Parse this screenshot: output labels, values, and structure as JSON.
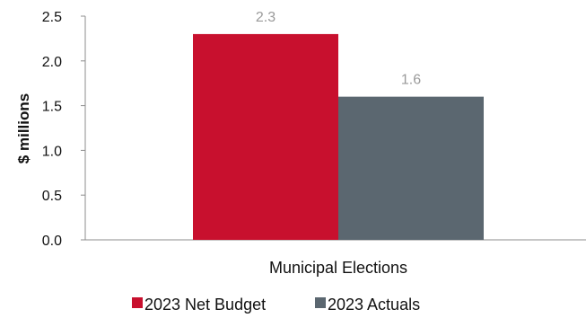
{
  "chart_data": {
    "type": "bar",
    "categories": [
      "Municipal Elections"
    ],
    "series": [
      {
        "name": "2023 Net Budget",
        "values": [
          2.3
        ],
        "color": "#c8102e"
      },
      {
        "name": "2023 Actuals",
        "values": [
          1.6
        ],
        "color": "#5b6770"
      }
    ],
    "ylabel": "$ millions",
    "xlabel": "",
    "ylim": [
      0,
      2.5
    ],
    "yticks": [
      "0.0",
      "0.5",
      "1.0",
      "1.5",
      "2.0",
      "2.5"
    ],
    "data_labels": [
      "2.3",
      "1.6"
    ],
    "legend_position": "bottom",
    "grid": false
  }
}
